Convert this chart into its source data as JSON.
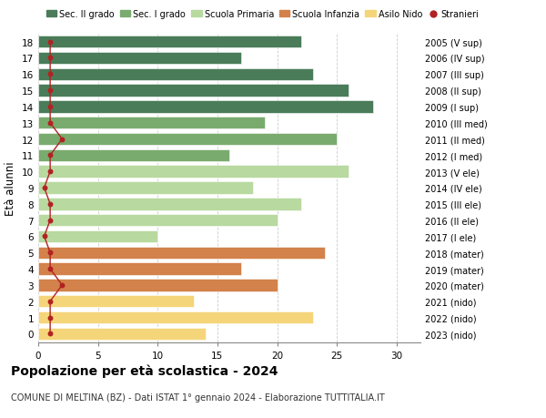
{
  "title": "Popolazione per età scolastica - 2024",
  "subtitle": "COMUNE DI MELTINA (BZ) - Dati ISTAT 1° gennaio 2024 - Elaborazione TUTTITALIA.IT",
  "ylabel_left": "Età alunni",
  "xlim": [
    0,
    32
  ],
  "xticks": [
    0,
    5,
    10,
    15,
    20,
    25,
    30
  ],
  "ages": [
    18,
    17,
    16,
    15,
    14,
    13,
    12,
    11,
    10,
    9,
    8,
    7,
    6,
    5,
    4,
    3,
    2,
    1,
    0
  ],
  "right_labels": [
    "2005 (V sup)",
    "2006 (IV sup)",
    "2007 (III sup)",
    "2008 (II sup)",
    "2009 (I sup)",
    "2010 (III med)",
    "2011 (II med)",
    "2012 (I med)",
    "2013 (V ele)",
    "2014 (IV ele)",
    "2015 (III ele)",
    "2016 (II ele)",
    "2017 (I ele)",
    "2018 (mater)",
    "2019 (mater)",
    "2020 (mater)",
    "2021 (nido)",
    "2022 (nido)",
    "2023 (nido)"
  ],
  "bar_values": [
    22,
    17,
    23,
    26,
    28,
    19,
    25,
    16,
    26,
    18,
    22,
    20,
    10,
    24,
    17,
    20,
    13,
    23,
    14
  ],
  "bar_colors": [
    "#4a7c59",
    "#4a7c59",
    "#4a7c59",
    "#4a7c59",
    "#4a7c59",
    "#7aab6e",
    "#7aab6e",
    "#7aab6e",
    "#b8d9a0",
    "#b8d9a0",
    "#b8d9a0",
    "#b8d9a0",
    "#b8d9a0",
    "#d2824a",
    "#d2824a",
    "#d2824a",
    "#f5d57a",
    "#f5d57a",
    "#f5d57a"
  ],
  "stranieri_x": [
    1,
    1,
    1,
    1,
    1,
    1,
    2,
    1,
    1,
    0.5,
    1,
    1,
    0.5,
    1,
    1,
    2,
    1,
    1,
    1
  ],
  "stranieri_color": "#b22222",
  "legend_entries": [
    {
      "label": "Sec. II grado",
      "color": "#4a7c59"
    },
    {
      "label": "Sec. I grado",
      "color": "#7aab6e"
    },
    {
      "label": "Scuola Primaria",
      "color": "#b8d9a0"
    },
    {
      "label": "Scuola Infanzia",
      "color": "#d2824a"
    },
    {
      "label": "Asilo Nido",
      "color": "#f5d57a"
    },
    {
      "label": "Stranieri",
      "color": "#b22222"
    }
  ],
  "background_color": "#ffffff",
  "grid_color": "#cccccc",
  "bar_height": 0.75
}
